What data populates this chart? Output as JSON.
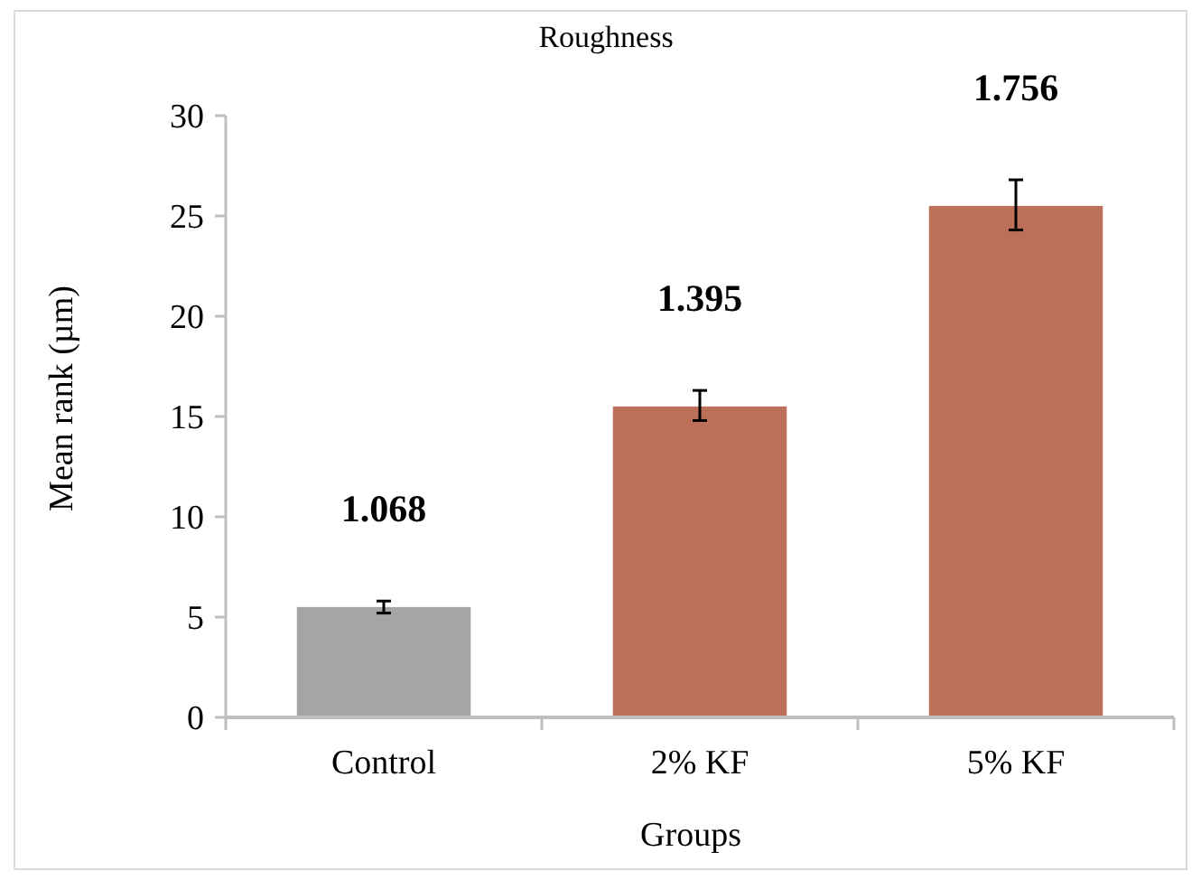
{
  "chart_data": {
    "type": "bar",
    "title": "Roughness",
    "xlabel": "Groups",
    "ylabel": "Mean rank  (µm)",
    "categories": [
      "Control",
      "2% KF",
      "5% KF"
    ],
    "values": [
      5.5,
      15.5,
      25.5
    ],
    "colors": [
      "#a5a5a5",
      "#bc7059",
      "#bc7059"
    ],
    "errors": [
      [
        5.2,
        5.8
      ],
      [
        14.8,
        16.3
      ],
      [
        24.3,
        26.8
      ]
    ],
    "annotations": [
      "1.068",
      "1.395",
      "1.756"
    ],
    "ylim": [
      0,
      30
    ],
    "yticks": [
      0,
      5,
      10,
      15,
      20,
      25,
      30
    ],
    "grid": false
  }
}
